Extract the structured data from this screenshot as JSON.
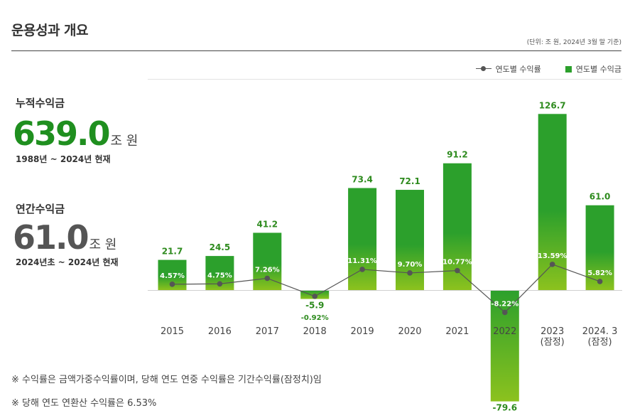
{
  "header": {
    "title": "운용성과 개요",
    "unit_note": "(단위: 조 원, 2024년 3월 말 기준)"
  },
  "legend": {
    "rate_label": "연도별 수익률",
    "amount_label": "연도별 수익금"
  },
  "cumulative": {
    "label": "누적수익금",
    "value": "639.0",
    "unit": "조 원",
    "period": "1988년 ~ 2024년 현재",
    "color": "#1f8f1f"
  },
  "annual": {
    "label": "연간수익금",
    "value": "61.0",
    "unit": "조 원",
    "period": "2024년초 ~ 2024년 현재",
    "color": "#555555"
  },
  "footnotes": [
    "※ 수익률은 금액가중수익률이며, 당해 연도 연중 수익률은 기간수익률(잠정치)임",
    "※ 당해 연도 연환산 수익률은 6.53%"
  ],
  "chart_data": {
    "type": "bar",
    "title": "",
    "xlabel": "",
    "ylabel": "",
    "categories": [
      [
        "2015"
      ],
      [
        "2016"
      ],
      [
        "2017"
      ],
      [
        "2018"
      ],
      [
        "2019"
      ],
      [
        "2020"
      ],
      [
        "2021"
      ],
      [
        "2022"
      ],
      [
        "2023",
        "(잠정)"
      ],
      [
        "2024. 3",
        "(잠정)"
      ]
    ],
    "series": [
      {
        "name": "연도별 수익금",
        "type": "bar",
        "values": [
          21.7,
          24.5,
          41.2,
          -5.9,
          73.4,
          72.1,
          91.2,
          -79.6,
          126.7,
          61.0
        ],
        "labels": [
          "21.7",
          "24.5",
          "41.2",
          "-5.9",
          "73.4",
          "72.1",
          "91.2",
          "-79.6",
          "126.7",
          "61.0"
        ]
      },
      {
        "name": "연도별 수익률",
        "type": "line",
        "values": [
          4.57,
          4.75,
          7.26,
          -0.92,
          11.31,
          9.7,
          10.77,
          -8.22,
          13.59,
          5.82
        ],
        "labels": [
          "4.57%",
          "4.75%",
          "7.26%",
          "-0.92%",
          "11.31%",
          "9.70%",
          "10.77%",
          "-8.22%",
          "13.59%",
          "5.82%"
        ]
      }
    ],
    "colors": {
      "bar_top": "#2ca02c",
      "bar_bottom": "#8cc21e",
      "line": "#555555",
      "label": "#2e8b1e"
    }
  }
}
